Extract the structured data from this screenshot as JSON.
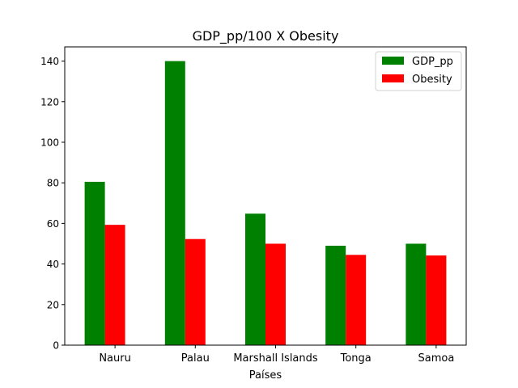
{
  "chart_data": {
    "type": "bar",
    "title": "GDP_pp/100 X Obesity",
    "xlabel": "Países",
    "ylabel": "",
    "categories": [
      "Nauru",
      "Palau",
      "Marshall Islands",
      "Tonga",
      "Samoa"
    ],
    "series": [
      {
        "name": "GDP_pp",
        "color": "#008000",
        "values": [
          80.5,
          140.0,
          64.8,
          49.0,
          50.0
        ]
      },
      {
        "name": "Obesity",
        "color": "#ff0000",
        "values": [
          59.3,
          52.3,
          50.0,
          44.5,
          44.2
        ]
      }
    ],
    "ylim": [
      0,
      147
    ],
    "yticks": [
      0,
      20,
      40,
      60,
      80,
      100,
      120,
      140
    ],
    "legend_position": "top-right",
    "grid": false
  }
}
